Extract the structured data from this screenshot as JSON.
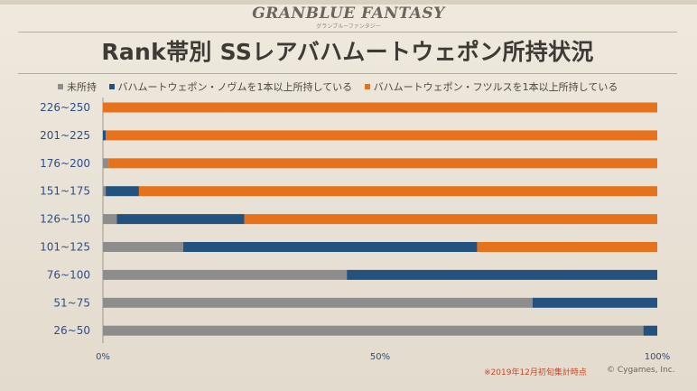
{
  "logo": {
    "text": "GRANBLUE FANTASY",
    "subtitle": "グランブルーファンタジー"
  },
  "note": "※2019年12月初旬集計時点",
  "copyright": "© Cygames, Inc.",
  "chart_data": {
    "type": "bar",
    "orientation": "horizontal",
    "stacked": true,
    "title": "Rank帯別 SSレアバハムートウェポン所持状況",
    "categories": [
      "226~250",
      "201~225",
      "176~200",
      "151~175",
      "126~150",
      "101~125",
      "76~100",
      "51~75",
      "26~50"
    ],
    "series": [
      {
        "name": "未所持",
        "color": "#8d8d8d",
        "values": [
          0,
          0,
          1,
          0.5,
          2.5,
          14.5,
          44,
          77.5,
          97.5
        ]
      },
      {
        "name": "バハムートウェポン・ノヴムを1本以上所持している",
        "color": "#23527f",
        "values": [
          0,
          0.5,
          0,
          6,
          23,
          53,
          56,
          22.5,
          2.5
        ]
      },
      {
        "name": "バハムートウェポン・フツルスを1本以上所持している",
        "color": "#e6731c",
        "values": [
          100,
          99.5,
          99,
          93.5,
          74.5,
          32.5,
          0,
          0,
          0
        ]
      }
    ],
    "xlim": [
      0,
      100
    ],
    "x_ticks": [
      "0%",
      "50%",
      "100%"
    ],
    "legend_position": "top-left"
  }
}
